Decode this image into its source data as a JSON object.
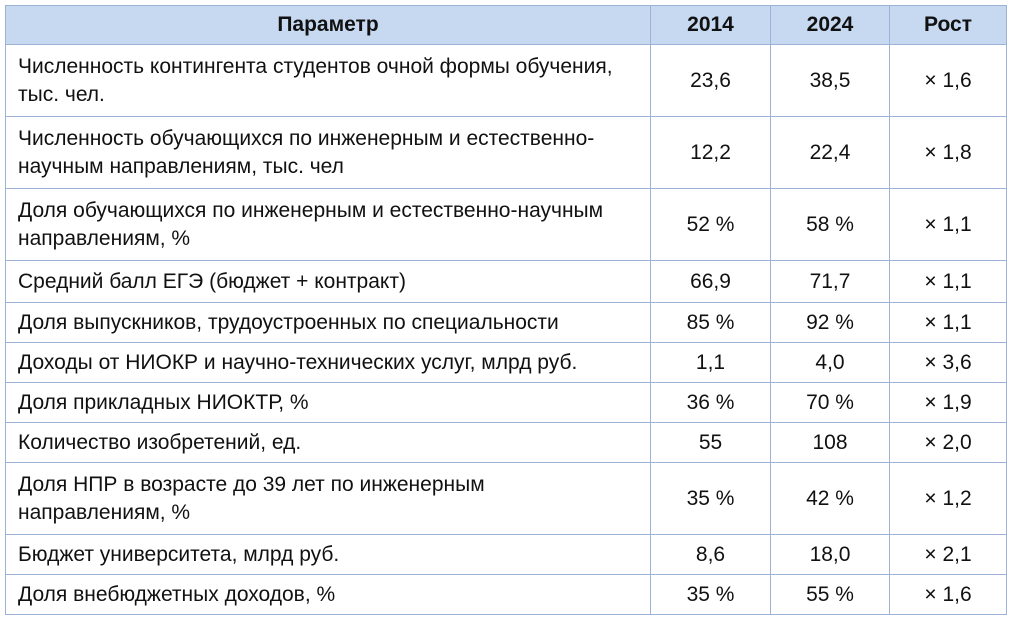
{
  "table": {
    "header": [
      "Параметр",
      "2014",
      "2024",
      "Рост"
    ],
    "rows": [
      [
        "Численность контингента студентов очной формы обучения, тыс. чел.",
        "23,6",
        "38,5",
        "× 1,6"
      ],
      [
        "Численность обучающихся по инженерным и естественно-научным направлениям, тыс. чел",
        "12,2",
        "22,4",
        "× 1,8"
      ],
      [
        "Доля обучающихся по инженерным и естественно-научным направлениям, %",
        "52 %",
        "58 %",
        "× 1,1"
      ],
      [
        "Средний балл ЕГЭ (бюджет + контракт)",
        "66,9",
        "71,7",
        "× 1,1"
      ],
      [
        "Доля выпускников, трудоустроенных по специальности",
        "85 %",
        "92 %",
        "× 1,1"
      ],
      [
        "Доходы от НИОКР и научно-технических услуг, млрд руб.",
        "1,1",
        "4,0",
        "× 3,6"
      ],
      [
        "Доля прикладных НИОКТР, %",
        "36 %",
        "70 %",
        "× 1,9"
      ],
      [
        "Количество изобретений, ед.",
        "55",
        "108",
        "× 2,0"
      ],
      [
        "Доля НПР в возрасте до 39 лет по инженерным направлениям, %",
        "35 %",
        "42 %",
        "× 1,2"
      ],
      [
        "Бюджет университета, млрд руб.",
        "8,6",
        "18,0",
        "× 2,1"
      ],
      [
        "Доля внебюджетных доходов, %",
        "35 %",
        "55 %",
        "× 1,6"
      ]
    ]
  }
}
